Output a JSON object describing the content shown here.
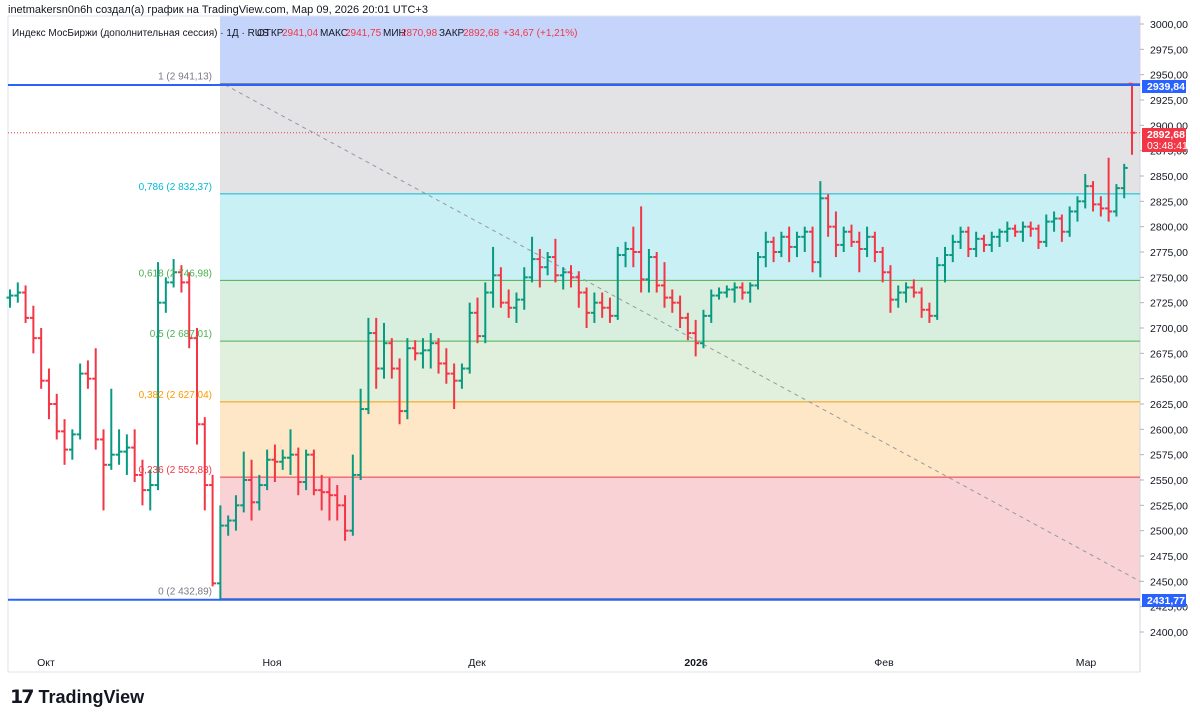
{
  "header": {
    "attribution": "inetmakersn0n6h создал(а) график на TradingView.com, Мар 09, 2026 20:01 UTC+3"
  },
  "legend": {
    "symbol": "Индекс МосБиржи (дополнительная сессия) · 1Д · RUS",
    "open_label": "ОТКР",
    "open_value": "2941,04",
    "high_label": "МАКС",
    "high_value": "2941,75",
    "low_label": "МИН",
    "low_value": "2870,98",
    "close_label": "ЗАКР",
    "close_value": "2892,68",
    "change": "+34,67 (+1,21%)"
  },
  "brand": {
    "logo_mark": "17",
    "logo_text": "TradingView"
  },
  "price_tags": {
    "top_line": "2939,84",
    "last_price": "2892,68",
    "countdown": "03:48:41",
    "bottom_line": "2431,77"
  },
  "colors": {
    "up": "#089981",
    "down": "#f23645",
    "blue_line": "#2962ff",
    "fib_1": "#787b86",
    "fib_0786": "#00bcd4",
    "fib_0618": "#4caf50",
    "fib_05": "#4caf50",
    "fib_0382": "#ff9800",
    "fib_0236": "#f23645",
    "fib_0": "#787b86"
  },
  "chart_data": {
    "type": "ohlc",
    "x_tick_labels": [
      "Окт",
      "Ноя",
      "Дек",
      "2026",
      "Фев",
      "Мар"
    ],
    "y_tick_labels": [
      "3000,00",
      "2975,00",
      "2950,00",
      "2925,00",
      "2900,00",
      "2875,00",
      "2850,00",
      "2825,00",
      "2800,00",
      "2775,00",
      "2750,00",
      "2725,00",
      "2700,00",
      "2675,00",
      "2650,00",
      "2625,00",
      "2600,00",
      "2575,00",
      "2550,00",
      "2525,00",
      "2500,00",
      "2475,00",
      "2450,00",
      "2425,00",
      "2400,00"
    ],
    "y_ticks": [
      3000,
      2975,
      2950,
      2925,
      2900,
      2875,
      2850,
      2825,
      2800,
      2775,
      2750,
      2725,
      2700,
      2675,
      2650,
      2625,
      2600,
      2575,
      2550,
      2525,
      2500,
      2475,
      2450,
      2425,
      2400
    ],
    "ylim": [
      2388,
      3010
    ],
    "fib_levels": [
      {
        "label": "1 (2 941,13)",
        "price": 2941.13,
        "key": "fib_1"
      },
      {
        "label": "0,786 (2 832,37)",
        "price": 2832.37,
        "key": "fib_0786"
      },
      {
        "label": "0,618 (2 746,98)",
        "price": 2746.98,
        "key": "fib_0618"
      },
      {
        "label": "0,5 (2 687,01)",
        "price": 2687.01,
        "key": "fib_05"
      },
      {
        "label": "0,382 (2 627,04)",
        "price": 2627.04,
        "key": "fib_0382"
      },
      {
        "label": "0,236 (2 552,83)",
        "price": 2552.83,
        "key": "fib_0236"
      },
      {
        "label": "0 (2 432,89)",
        "price": 2432.89,
        "key": "fib_0"
      }
    ],
    "horizontal_lines": [
      2939.84,
      2431.77
    ],
    "last_price_line": 2892.68,
    "trendline": {
      "from": 2940,
      "to": 2450
    },
    "bars": [
      {
        "o": 2730,
        "h": 2738,
        "l": 2720,
        "c": 2732
      },
      {
        "o": 2732,
        "h": 2745,
        "l": 2725,
        "c": 2735
      },
      {
        "o": 2735,
        "h": 2742,
        "l": 2705,
        "c": 2710
      },
      {
        "o": 2710,
        "h": 2722,
        "l": 2675,
        "c": 2690
      },
      {
        "o": 2690,
        "h": 2700,
        "l": 2640,
        "c": 2648
      },
      {
        "o": 2648,
        "h": 2660,
        "l": 2610,
        "c": 2625
      },
      {
        "o": 2625,
        "h": 2635,
        "l": 2590,
        "c": 2598
      },
      {
        "o": 2598,
        "h": 2610,
        "l": 2565,
        "c": 2580
      },
      {
        "o": 2580,
        "h": 2600,
        "l": 2570,
        "c": 2595
      },
      {
        "o": 2595,
        "h": 2665,
        "l": 2590,
        "c": 2655
      },
      {
        "o": 2655,
        "h": 2668,
        "l": 2640,
        "c": 2650
      },
      {
        "o": 2650,
        "h": 2680,
        "l": 2580,
        "c": 2590
      },
      {
        "o": 2590,
        "h": 2600,
        "l": 2520,
        "c": 2565
      },
      {
        "o": 2565,
        "h": 2640,
        "l": 2560,
        "c": 2575
      },
      {
        "o": 2575,
        "h": 2600,
        "l": 2565,
        "c": 2578
      },
      {
        "o": 2578,
        "h": 2595,
        "l": 2555,
        "c": 2582
      },
      {
        "o": 2582,
        "h": 2600,
        "l": 2548,
        "c": 2555
      },
      {
        "o": 2555,
        "h": 2570,
        "l": 2525,
        "c": 2540
      },
      {
        "o": 2540,
        "h": 2560,
        "l": 2520,
        "c": 2545
      },
      {
        "o": 2545,
        "h": 2765,
        "l": 2540,
        "c": 2725
      },
      {
        "o": 2725,
        "h": 2750,
        "l": 2715,
        "c": 2745
      },
      {
        "o": 2745,
        "h": 2768,
        "l": 2740,
        "c": 2755
      },
      {
        "o": 2755,
        "h": 2762,
        "l": 2735,
        "c": 2745
      },
      {
        "o": 2745,
        "h": 2755,
        "l": 2680,
        "c": 2690
      },
      {
        "o": 2690,
        "h": 2700,
        "l": 2585,
        "c": 2605
      },
      {
        "o": 2605,
        "h": 2612,
        "l": 2520,
        "c": 2545
      },
      {
        "o": 2545,
        "h": 2555,
        "l": 2445,
        "c": 2448
      },
      {
        "o": 2448,
        "h": 2525,
        "l": 2432,
        "c": 2505
      },
      {
        "o": 2505,
        "h": 2515,
        "l": 2495,
        "c": 2510
      },
      {
        "o": 2510,
        "h": 2535,
        "l": 2500,
        "c": 2525
      },
      {
        "o": 2525,
        "h": 2578,
        "l": 2518,
        "c": 2550
      },
      {
        "o": 2550,
        "h": 2570,
        "l": 2510,
        "c": 2528
      },
      {
        "o": 2528,
        "h": 2555,
        "l": 2520,
        "c": 2545
      },
      {
        "o": 2545,
        "h": 2580,
        "l": 2540,
        "c": 2570
      },
      {
        "o": 2570,
        "h": 2585,
        "l": 2548,
        "c": 2568
      },
      {
        "o": 2568,
        "h": 2580,
        "l": 2560,
        "c": 2572
      },
      {
        "o": 2572,
        "h": 2600,
        "l": 2555,
        "c": 2575
      },
      {
        "o": 2575,
        "h": 2582,
        "l": 2535,
        "c": 2548
      },
      {
        "o": 2548,
        "h": 2580,
        "l": 2540,
        "c": 2575
      },
      {
        "o": 2575,
        "h": 2580,
        "l": 2535,
        "c": 2540
      },
      {
        "o": 2540,
        "h": 2555,
        "l": 2520,
        "c": 2538
      },
      {
        "o": 2538,
        "h": 2552,
        "l": 2510,
        "c": 2535
      },
      {
        "o": 2535,
        "h": 2545,
        "l": 2510,
        "c": 2525
      },
      {
        "o": 2525,
        "h": 2535,
        "l": 2490,
        "c": 2500
      },
      {
        "o": 2500,
        "h": 2575,
        "l": 2495,
        "c": 2555
      },
      {
        "o": 2555,
        "h": 2640,
        "l": 2550,
        "c": 2620
      },
      {
        "o": 2620,
        "h": 2710,
        "l": 2615,
        "c": 2695
      },
      {
        "o": 2695,
        "h": 2710,
        "l": 2640,
        "c": 2660
      },
      {
        "o": 2660,
        "h": 2705,
        "l": 2650,
        "c": 2685
      },
      {
        "o": 2685,
        "h": 2690,
        "l": 2650,
        "c": 2660
      },
      {
        "o": 2660,
        "h": 2670,
        "l": 2605,
        "c": 2618
      },
      {
        "o": 2618,
        "h": 2690,
        "l": 2610,
        "c": 2680
      },
      {
        "o": 2680,
        "h": 2688,
        "l": 2668,
        "c": 2675
      },
      {
        "o": 2675,
        "h": 2690,
        "l": 2660,
        "c": 2678
      },
      {
        "o": 2678,
        "h": 2695,
        "l": 2660,
        "c": 2685
      },
      {
        "o": 2685,
        "h": 2690,
        "l": 2655,
        "c": 2665
      },
      {
        "o": 2665,
        "h": 2680,
        "l": 2645,
        "c": 2655
      },
      {
        "o": 2655,
        "h": 2665,
        "l": 2620,
        "c": 2648
      },
      {
        "o": 2648,
        "h": 2665,
        "l": 2640,
        "c": 2660
      },
      {
        "o": 2660,
        "h": 2725,
        "l": 2655,
        "c": 2715
      },
      {
        "o": 2715,
        "h": 2730,
        "l": 2685,
        "c": 2692
      },
      {
        "o": 2692,
        "h": 2745,
        "l": 2685,
        "c": 2735
      },
      {
        "o": 2735,
        "h": 2780,
        "l": 2720,
        "c": 2752
      },
      {
        "o": 2752,
        "h": 2760,
        "l": 2720,
        "c": 2725
      },
      {
        "o": 2725,
        "h": 2738,
        "l": 2710,
        "c": 2720
      },
      {
        "o": 2720,
        "h": 2735,
        "l": 2705,
        "c": 2728
      },
      {
        "o": 2728,
        "h": 2760,
        "l": 2718,
        "c": 2750
      },
      {
        "o": 2750,
        "h": 2790,
        "l": 2745,
        "c": 2768
      },
      {
        "o": 2768,
        "h": 2778,
        "l": 2740,
        "c": 2760
      },
      {
        "o": 2760,
        "h": 2775,
        "l": 2752,
        "c": 2770
      },
      {
        "o": 2770,
        "h": 2788,
        "l": 2745,
        "c": 2752
      },
      {
        "o": 2752,
        "h": 2760,
        "l": 2738,
        "c": 2755
      },
      {
        "o": 2755,
        "h": 2762,
        "l": 2740,
        "c": 2750
      },
      {
        "o": 2750,
        "h": 2756,
        "l": 2720,
        "c": 2735
      },
      {
        "o": 2735,
        "h": 2740,
        "l": 2700,
        "c": 2715
      },
      {
        "o": 2715,
        "h": 2735,
        "l": 2705,
        "c": 2725
      },
      {
        "o": 2725,
        "h": 2735,
        "l": 2710,
        "c": 2720
      },
      {
        "o": 2720,
        "h": 2730,
        "l": 2705,
        "c": 2712
      },
      {
        "o": 2712,
        "h": 2780,
        "l": 2708,
        "c": 2772
      },
      {
        "o": 2772,
        "h": 2785,
        "l": 2760,
        "c": 2778
      },
      {
        "o": 2778,
        "h": 2800,
        "l": 2760,
        "c": 2775
      },
      {
        "o": 2775,
        "h": 2820,
        "l": 2735,
        "c": 2748
      },
      {
        "o": 2748,
        "h": 2778,
        "l": 2735,
        "c": 2770
      },
      {
        "o": 2770,
        "h": 2775,
        "l": 2735,
        "c": 2742
      },
      {
        "o": 2742,
        "h": 2765,
        "l": 2720,
        "c": 2730
      },
      {
        "o": 2730,
        "h": 2738,
        "l": 2715,
        "c": 2725
      },
      {
        "o": 2725,
        "h": 2732,
        "l": 2700,
        "c": 2710
      },
      {
        "o": 2710,
        "h": 2715,
        "l": 2688,
        "c": 2695
      },
      {
        "o": 2695,
        "h": 2708,
        "l": 2672,
        "c": 2685
      },
      {
        "o": 2685,
        "h": 2718,
        "l": 2680,
        "c": 2712
      },
      {
        "o": 2712,
        "h": 2738,
        "l": 2705,
        "c": 2732
      },
      {
        "o": 2732,
        "h": 2740,
        "l": 2728,
        "c": 2735
      },
      {
        "o": 2735,
        "h": 2742,
        "l": 2730,
        "c": 2738
      },
      {
        "o": 2738,
        "h": 2745,
        "l": 2725,
        "c": 2740
      },
      {
        "o": 2740,
        "h": 2745,
        "l": 2728,
        "c": 2735
      },
      {
        "o": 2735,
        "h": 2745,
        "l": 2725,
        "c": 2742
      },
      {
        "o": 2742,
        "h": 2775,
        "l": 2738,
        "c": 2770
      },
      {
        "o": 2770,
        "h": 2795,
        "l": 2760,
        "c": 2785
      },
      {
        "o": 2785,
        "h": 2790,
        "l": 2765,
        "c": 2775
      },
      {
        "o": 2775,
        "h": 2795,
        "l": 2770,
        "c": 2790
      },
      {
        "o": 2790,
        "h": 2800,
        "l": 2765,
        "c": 2780
      },
      {
        "o": 2780,
        "h": 2795,
        "l": 2770,
        "c": 2790
      },
      {
        "o": 2790,
        "h": 2800,
        "l": 2775,
        "c": 2795
      },
      {
        "o": 2795,
        "h": 2800,
        "l": 2755,
        "c": 2765
      },
      {
        "o": 2765,
        "h": 2845,
        "l": 2750,
        "c": 2828
      },
      {
        "o": 2828,
        "h": 2832,
        "l": 2790,
        "c": 2800
      },
      {
        "o": 2800,
        "h": 2815,
        "l": 2770,
        "c": 2782
      },
      {
        "o": 2782,
        "h": 2800,
        "l": 2775,
        "c": 2795
      },
      {
        "o": 2795,
        "h": 2802,
        "l": 2780,
        "c": 2785
      },
      {
        "o": 2785,
        "h": 2795,
        "l": 2755,
        "c": 2778
      },
      {
        "o": 2778,
        "h": 2800,
        "l": 2770,
        "c": 2790
      },
      {
        "o": 2790,
        "h": 2795,
        "l": 2765,
        "c": 2775
      },
      {
        "o": 2775,
        "h": 2780,
        "l": 2745,
        "c": 2755
      },
      {
        "o": 2755,
        "h": 2762,
        "l": 2715,
        "c": 2728
      },
      {
        "o": 2728,
        "h": 2742,
        "l": 2720,
        "c": 2735
      },
      {
        "o": 2735,
        "h": 2745,
        "l": 2725,
        "c": 2740
      },
      {
        "o": 2740,
        "h": 2748,
        "l": 2730,
        "c": 2735
      },
      {
        "o": 2735,
        "h": 2740,
        "l": 2710,
        "c": 2718
      },
      {
        "o": 2718,
        "h": 2725,
        "l": 2705,
        "c": 2712
      },
      {
        "o": 2712,
        "h": 2770,
        "l": 2708,
        "c": 2762
      },
      {
        "o": 2762,
        "h": 2780,
        "l": 2745,
        "c": 2772
      },
      {
        "o": 2772,
        "h": 2792,
        "l": 2765,
        "c": 2785
      },
      {
        "o": 2785,
        "h": 2800,
        "l": 2778,
        "c": 2795
      },
      {
        "o": 2795,
        "h": 2800,
        "l": 2770,
        "c": 2778
      },
      {
        "o": 2778,
        "h": 2795,
        "l": 2770,
        "c": 2788
      },
      {
        "o": 2788,
        "h": 2792,
        "l": 2775,
        "c": 2782
      },
      {
        "o": 2782,
        "h": 2795,
        "l": 2775,
        "c": 2790
      },
      {
        "o": 2790,
        "h": 2798,
        "l": 2780,
        "c": 2795
      },
      {
        "o": 2795,
        "h": 2805,
        "l": 2785,
        "c": 2798
      },
      {
        "o": 2798,
        "h": 2802,
        "l": 2790,
        "c": 2795
      },
      {
        "o": 2795,
        "h": 2805,
        "l": 2785,
        "c": 2800
      },
      {
        "o": 2800,
        "h": 2805,
        "l": 2790,
        "c": 2798
      },
      {
        "o": 2798,
        "h": 2802,
        "l": 2778,
        "c": 2785
      },
      {
        "o": 2785,
        "h": 2812,
        "l": 2780,
        "c": 2805
      },
      {
        "o": 2805,
        "h": 2815,
        "l": 2795,
        "c": 2808
      },
      {
        "o": 2808,
        "h": 2812,
        "l": 2785,
        "c": 2795
      },
      {
        "o": 2795,
        "h": 2820,
        "l": 2790,
        "c": 2815
      },
      {
        "o": 2815,
        "h": 2830,
        "l": 2805,
        "c": 2825
      },
      {
        "o": 2825,
        "h": 2852,
        "l": 2818,
        "c": 2840
      },
      {
        "o": 2840,
        "h": 2845,
        "l": 2815,
        "c": 2822
      },
      {
        "o": 2822,
        "h": 2830,
        "l": 2810,
        "c": 2818
      },
      {
        "o": 2818,
        "h": 2868,
        "l": 2805,
        "c": 2815
      },
      {
        "o": 2815,
        "h": 2842,
        "l": 2810,
        "c": 2838
      },
      {
        "o": 2838,
        "h": 2862,
        "l": 2828,
        "c": 2858
      },
      {
        "o": 2941.04,
        "h": 2941.75,
        "l": 2870.98,
        "c": 2892.68
      }
    ]
  }
}
